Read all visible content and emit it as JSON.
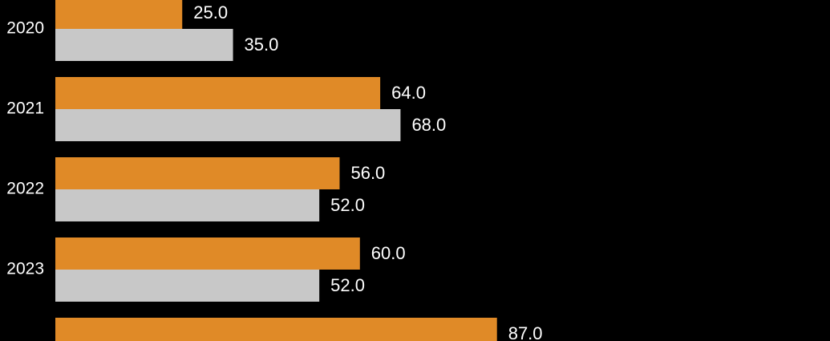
{
  "chart_data": {
    "type": "bar",
    "orientation": "horizontal",
    "categories": [
      "2020",
      "2021",
      "2022",
      "2023",
      ""
    ],
    "series": [
      {
        "values": [
          25.0,
          64.0,
          56.0,
          60.0,
          87.0
        ],
        "color": "#e08a27",
        "labels": [
          "25.0",
          "64.0",
          "56.0",
          "60.0",
          "87.0"
        ]
      },
      {
        "values": [
          35.0,
          68.0,
          52.0,
          52.0,
          null
        ],
        "color": "#c8c8c8",
        "labels": [
          "35.0",
          "68.0",
          "52.0",
          "52.0",
          ""
        ]
      }
    ],
    "grid": false,
    "legend": "none",
    "background": "#000000",
    "text_color": "#ffffff"
  }
}
